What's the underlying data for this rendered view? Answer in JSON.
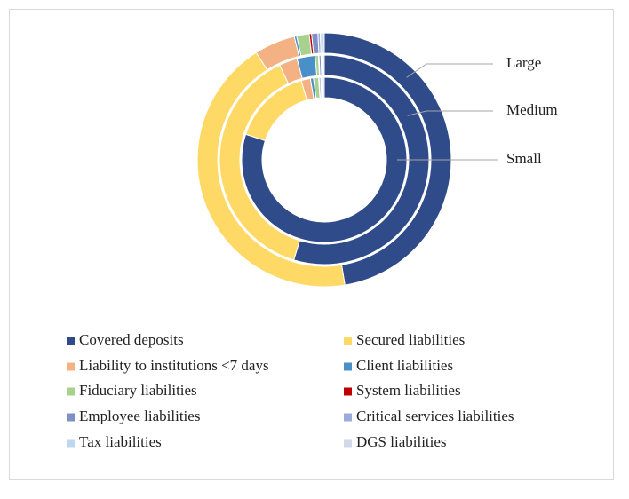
{
  "chart_data": {
    "type": "donut",
    "categories": [
      "Covered deposits",
      "Secured liabilities",
      "Liability to institutions <7 days",
      "Client liabilities",
      "Fiduciary liabilities",
      "System liabilities",
      "Employee liabilities",
      "Critical services liabilities",
      "Tax liabilities",
      "DGS liabilities"
    ],
    "colors": [
      "#2f4b8a",
      "#ffd966",
      "#f4b183",
      "#4a90c8",
      "#a9d18e",
      "#c00000",
      "#7f8fc8",
      "#9dabd8",
      "#bdd7ee",
      "#d0d8ea"
    ],
    "series": [
      {
        "name": "Large",
        "values": [
          47.4,
          43.6,
          5.2,
          0.3,
          1.6,
          0.3,
          0.8,
          0.3,
          0.2,
          0.3
        ]
      },
      {
        "name": "Medium",
        "values": [
          54.7,
          38.3,
          2.8,
          2.8,
          0.5,
          0.1,
          0.3,
          0.1,
          0.2,
          0.2
        ]
      },
      {
        "name": "Small",
        "values": [
          80.0,
          15.5,
          1.8,
          0.6,
          1.0,
          0.1,
          0.3,
          0.2,
          0.2,
          0.3
        ]
      }
    ]
  }
}
